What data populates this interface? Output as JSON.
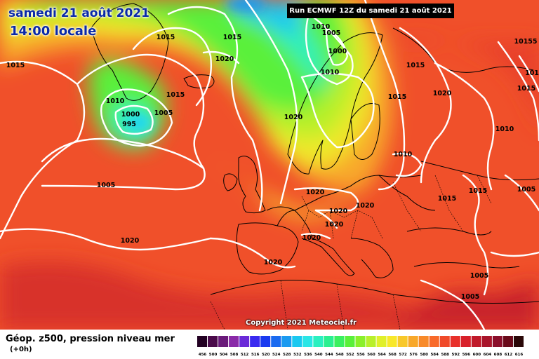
{
  "header": {
    "date_line": "samedi 21 août 2021",
    "time_line": "14:00 locale",
    "run_label": "Run ECMWF 12Z du samedi 21 août 2021"
  },
  "footer": {
    "copyright": "Copyright 2021 Meteociel.fr",
    "legend_title": "Géop. z500, pression niveau mer",
    "legend_subtitle": "(+0h)"
  },
  "color_scale": {
    "values": [
      "456",
      "500",
      "504",
      "508",
      "512",
      "516",
      "520",
      "524",
      "528",
      "532",
      "536",
      "540",
      "544",
      "548",
      "552",
      "556",
      "560",
      "564",
      "568",
      "572",
      "576",
      "580",
      "584",
      "588",
      "592",
      "596",
      "600",
      "604",
      "608",
      "612",
      "616"
    ],
    "colors": [
      "#220022",
      "#4a0a4a",
      "#6a1a7a",
      "#8a2aa8",
      "#6a2ad8",
      "#3a2af0",
      "#1a3af0",
      "#1a6af0",
      "#1a9af0",
      "#1ac8f0",
      "#2ae6e6",
      "#2af0c0",
      "#2af090",
      "#3af060",
      "#5af03a",
      "#8af02a",
      "#b8f02a",
      "#e0f02a",
      "#f8e82a",
      "#f8c82a",
      "#f8a82a",
      "#f88a2a",
      "#f86a2a",
      "#f04a2a",
      "#e8302a",
      "#d8202a",
      "#c01a2a",
      "#a8142a",
      "#8a0e2a",
      "#6a0a1a",
      "#2a0808"
    ]
  },
  "isobar_labels": [
    {
      "text": "1015",
      "id": "i1"
    },
    {
      "text": "1015",
      "id": "i2"
    },
    {
      "text": "1015",
      "id": "i3"
    },
    {
      "text": "1020",
      "id": "i4"
    },
    {
      "text": "1010",
      "id": "i5"
    },
    {
      "text": "1005",
      "id": "i6"
    },
    {
      "text": "1000",
      "id": "i7"
    },
    {
      "text": "1010",
      "id": "i8"
    },
    {
      "text": "1015",
      "id": "i9"
    },
    {
      "text": "1010",
      "id": "i10"
    },
    {
      "text": "1000",
      "id": "i11"
    },
    {
      "text": "995",
      "id": "i12"
    },
    {
      "text": "1005",
      "id": "i13"
    },
    {
      "text": "1015",
      "id": "i14"
    },
    {
      "text": "1020",
      "id": "i15"
    },
    {
      "text": "1015",
      "id": "i16"
    },
    {
      "text": "1015",
      "id": "i17"
    },
    {
      "text": "1020",
      "id": "i18"
    },
    {
      "text": "1015",
      "id": "i19"
    },
    {
      "text": "1010",
      "id": "i20"
    },
    {
      "text": "10155",
      "id": "i21"
    },
    {
      "text": "101",
      "id": "i22"
    },
    {
      "text": "1010",
      "id": "i23"
    },
    {
      "text": "1005",
      "id": "i24"
    },
    {
      "text": "1020",
      "id": "i25"
    },
    {
      "text": "1020",
      "id": "i26"
    },
    {
      "text": "1020",
      "id": "i27"
    },
    {
      "text": "1020",
      "id": "i28"
    },
    {
      "text": "1015",
      "id": "i29"
    },
    {
      "text": "1005",
      "id": "i30"
    },
    {
      "text": "1020",
      "id": "i31"
    },
    {
      "text": "1020",
      "id": "i32"
    },
    {
      "text": "1020",
      "id": "i33"
    },
    {
      "text": "1005",
      "id": "i34"
    },
    {
      "text": "1005",
      "id": "i35"
    },
    {
      "text": "1010",
      "id": "i36"
    }
  ]
}
